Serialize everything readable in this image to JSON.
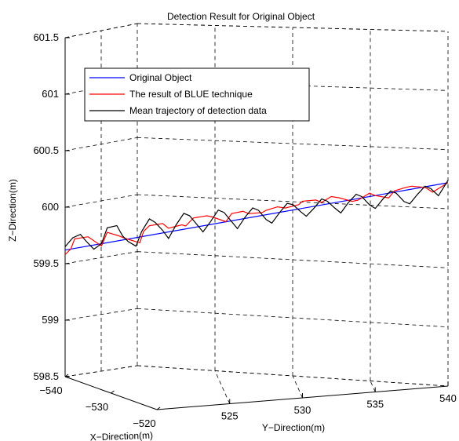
{
  "chart_data": {
    "type": "line",
    "projection": "3d",
    "title": "Detection Result for Original Object",
    "xlabel": "X−Direction(m)",
    "ylabel": "Y−Direction(m)",
    "zlabel": "Z−Direction(m)",
    "xlim": [
      -540,
      -520
    ],
    "ylim": [
      520,
      540
    ],
    "zlim": [
      598.5,
      601.5
    ],
    "x_ticks": [
      "−540",
      "−530",
      "−520"
    ],
    "y_ticks": [
      "525",
      "530",
      "535",
      "540"
    ],
    "z_ticks": [
      "598.5",
      "599",
      "599.5",
      "600",
      "600.5",
      "601",
      "601.5"
    ],
    "grid": true,
    "legend_position": "top-left",
    "series": [
      {
        "name": "Original Object",
        "color": "#0000ff",
        "y": [
          520,
          540
        ],
        "z": [
          599.62,
          600.22
        ]
      },
      {
        "name": "The result of BLUE technique",
        "color": "#ff0000",
        "y": [
          520.0,
          520.3,
          520.5,
          521.2,
          521.9,
          522.2,
          522.8,
          523.1,
          523.9,
          524.1,
          524.4,
          525.1,
          525.4,
          526.1,
          526.3,
          526.7,
          527.4,
          527.7,
          528.4,
          528.7,
          529.3,
          529.6,
          530.3,
          530.5,
          531.1,
          531.5,
          532.2,
          532.4,
          533.1,
          533.4,
          533.9,
          534.3,
          535.0,
          535.3,
          535.9,
          536.2,
          536.9,
          537.2,
          537.8,
          538.1,
          538.8,
          539.2,
          539.6,
          540.0
        ],
        "z": [
          599.58,
          599.63,
          599.72,
          599.74,
          599.66,
          599.78,
          599.75,
          599.73,
          599.69,
          599.79,
          599.84,
          599.86,
          599.82,
          599.85,
          599.84,
          599.91,
          599.93,
          599.92,
          599.88,
          599.95,
          599.97,
          599.95,
          599.96,
          599.98,
          600.01,
          600.0,
          600.03,
          600.06,
          600.07,
          600.05,
          600.1,
          600.09,
          600.06,
          600.07,
          600.13,
          600.11,
          600.09,
          600.15,
          600.18,
          600.19,
          600.18,
          600.14,
          600.18,
          600.22
        ]
      },
      {
        "name": "Mean trajectory of detection data",
        "color": "#000000",
        "y": [
          520.0,
          520.4,
          520.8,
          521.1,
          521.5,
          521.9,
          522.2,
          522.7,
          523.0,
          523.3,
          523.7,
          524.0,
          524.4,
          524.7,
          525.1,
          525.4,
          525.8,
          526.2,
          526.5,
          526.9,
          527.2,
          527.6,
          528.0,
          528.3,
          528.7,
          529.0,
          529.4,
          529.8,
          530.1,
          530.5,
          530.8,
          531.2,
          531.6,
          531.9,
          532.3,
          532.6,
          533.0,
          533.4,
          533.7,
          534.1,
          534.4,
          534.8,
          535.2,
          535.5,
          535.9,
          536.2,
          536.6,
          537.0,
          537.3,
          537.7,
          538.0,
          538.4,
          538.8,
          539.1,
          539.5,
          540.0
        ],
        "z": [
          599.65,
          599.73,
          599.76,
          599.7,
          599.63,
          599.68,
          599.82,
          599.84,
          599.75,
          599.7,
          599.66,
          599.79,
          599.9,
          599.87,
          599.8,
          599.73,
          599.85,
          599.95,
          599.93,
          599.85,
          599.79,
          599.88,
          599.98,
          599.96,
          599.88,
          599.82,
          599.92,
          600.0,
          599.98,
          599.9,
          599.87,
          599.96,
          600.04,
          600.03,
          599.97,
          599.93,
          600.0,
          600.08,
          600.06,
          600.0,
          599.96,
          600.05,
          600.12,
          600.1,
          600.03,
          600.0,
          600.08,
          600.15,
          600.13,
          600.06,
          600.04,
          600.12,
          600.19,
          600.17,
          600.11,
          600.24
        ]
      }
    ]
  }
}
